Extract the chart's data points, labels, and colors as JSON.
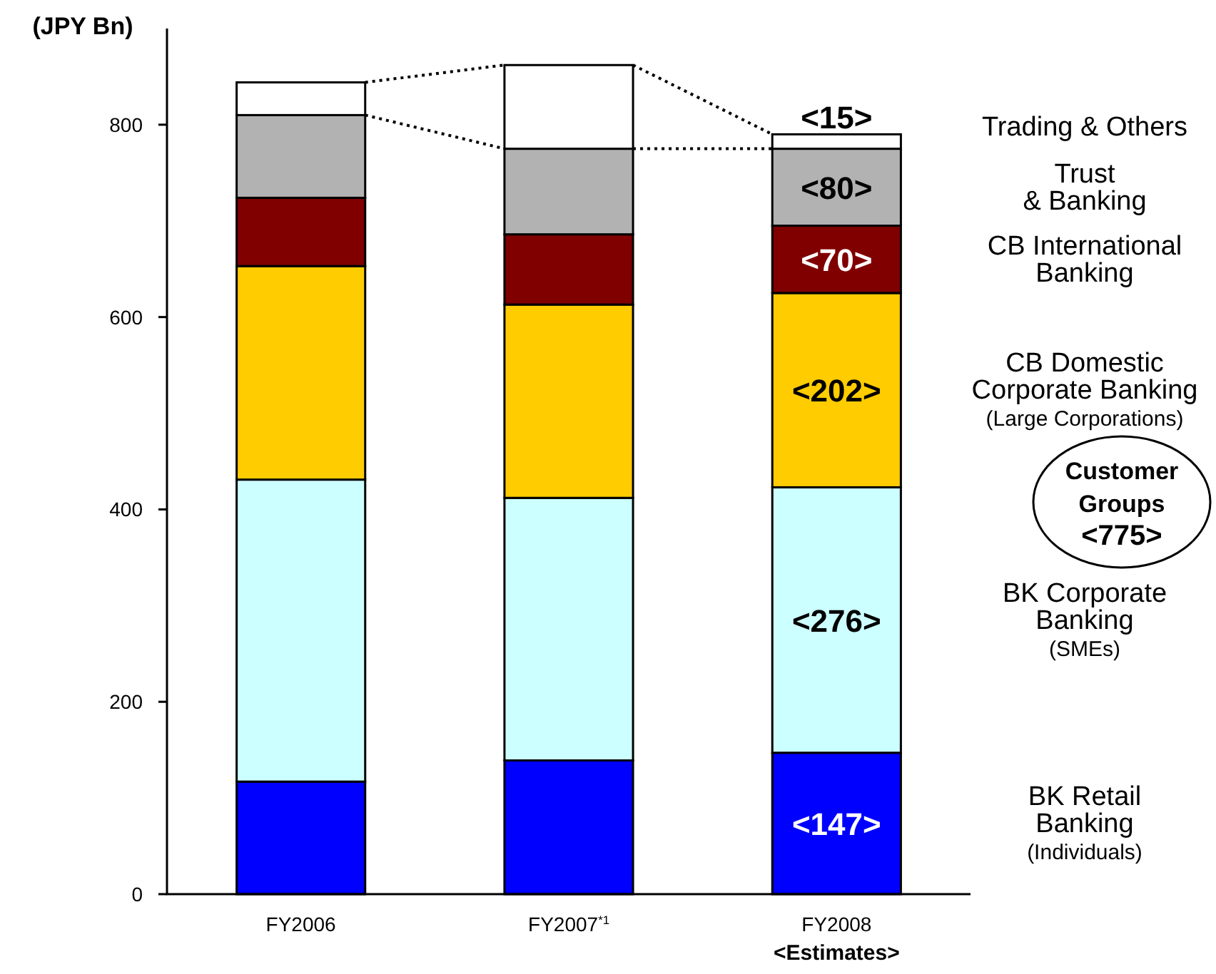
{
  "chart_data": {
    "type": "bar",
    "stacked": true,
    "ylabel": "(JPY Bn)",
    "categories": [
      "FY2006",
      "FY2007$^{*1}$",
      "FY2008\n<Estimates>"
    ],
    "ylim": [
      0,
      900
    ],
    "yticks": [
      0,
      200,
      400,
      600,
      800
    ],
    "grid": false,
    "series": [
      {
        "name": "BK Retail\nBanking\n(Individuals)",
        "color": "#0000ff",
        "values": [
          117,
          139,
          147
        ],
        "value_labels": [
          null,
          null,
          "<147>"
        ]
      },
      {
        "name": "BK Corporate\nBanking\n(SMEs)",
        "color": "#ccffff",
        "values": [
          314,
          273,
          276
        ],
        "value_labels": [
          null,
          null,
          "<276>"
        ]
      },
      {
        "name": "CB Domestic\nCorporate Banking\n(Large Corporations)",
        "color": "#ffcc00",
        "values": [
          222,
          201,
          202
        ],
        "value_labels": [
          null,
          null,
          "<202>"
        ]
      },
      {
        "name": "CB International\nBanking",
        "color": "#800000",
        "values": [
          71,
          73,
          70
        ],
        "value_labels": [
          null,
          null,
          "<70>"
        ]
      },
      {
        "name": "Trust\n& Banking",
        "color": "#b2b2b2",
        "values": [
          86,
          89,
          80
        ],
        "value_labels": [
          null,
          null,
          "<80>"
        ]
      },
      {
        "name": "Trading & Others",
        "color": "#ffffff",
        "values": [
          34,
          87,
          15
        ],
        "value_labels": [
          null,
          null,
          "<15>"
        ]
      }
    ],
    "annotations": [
      "Customer\nGroups\n<775>"
    ]
  }
}
